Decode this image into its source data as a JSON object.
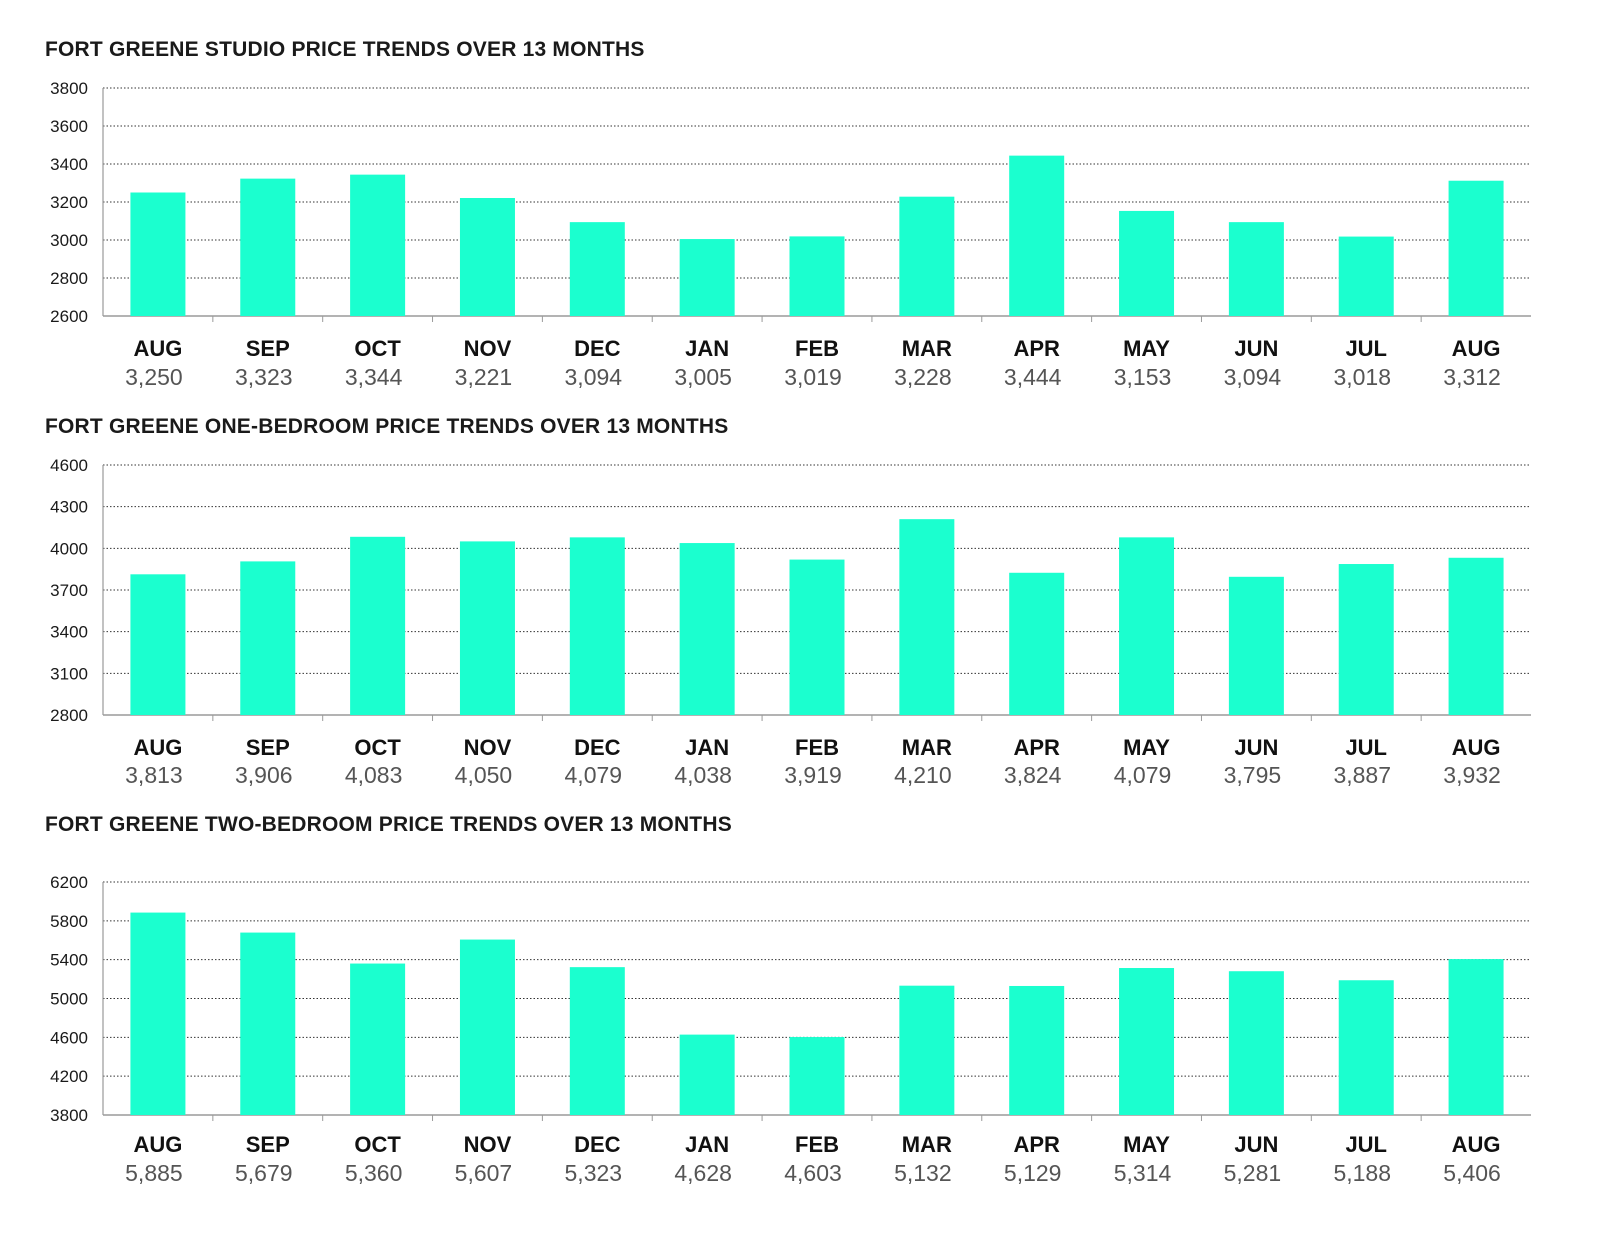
{
  "colors": {
    "bar": "#1BFFCF",
    "grid": "#333333",
    "axis": "#9a9a9a"
  },
  "chart_data": [
    {
      "type": "bar",
      "title": "FORT GREENE STUDIO PRICE TRENDS OVER 13 MONTHS",
      "categories": [
        "AUG",
        "SEP",
        "OCT",
        "NOV",
        "DEC",
        "JAN",
        "FEB",
        "MAR",
        "APR",
        "MAY",
        "JUN",
        "JUL",
        "AUG"
      ],
      "values": [
        3250,
        3323,
        3344,
        3221,
        3094,
        3005,
        3019,
        3228,
        3444,
        3153,
        3094,
        3018,
        3312
      ],
      "value_labels": [
        "3,250",
        "3,323",
        "3,344",
        "3,221",
        "3,094",
        "3,005",
        "3,019",
        "3,228",
        "3,444",
        "3,153",
        "3,094",
        "3,018",
        "3,312"
      ],
      "yticks": [
        2600,
        2800,
        3000,
        3200,
        3400,
        3600,
        3800
      ],
      "ylim": [
        2600,
        3800
      ],
      "grid": true
    },
    {
      "type": "bar",
      "title": "FORT GREENE ONE-BEDROOM PRICE TRENDS OVER 13 MONTHS",
      "categories": [
        "AUG",
        "SEP",
        "OCT",
        "NOV",
        "DEC",
        "JAN",
        "FEB",
        "MAR",
        "APR",
        "MAY",
        "JUN",
        "JUL",
        "AUG"
      ],
      "values": [
        3813,
        3906,
        4083,
        4050,
        4079,
        4038,
        3919,
        4210,
        3824,
        4079,
        3795,
        3887,
        3932
      ],
      "value_labels": [
        "3,813",
        "3,906",
        "4,083",
        "4,050",
        "4,079",
        "4,038",
        "3,919",
        "4,210",
        "3,824",
        "4,079",
        "3,795",
        "3,887",
        "3,932"
      ],
      "yticks": [
        2800,
        3100,
        3400,
        3700,
        4000,
        4300,
        4600
      ],
      "ylim": [
        2800,
        4600
      ],
      "grid": true
    },
    {
      "type": "bar",
      "title": "FORT GREENE TWO-BEDROOM PRICE TRENDS OVER 13 MONTHS",
      "categories": [
        "AUG",
        "SEP",
        "OCT",
        "NOV",
        "DEC",
        "JAN",
        "FEB",
        "MAR",
        "APR",
        "MAY",
        "JUN",
        "JUL",
        "AUG"
      ],
      "values": [
        5885,
        5679,
        5360,
        5607,
        5323,
        4628,
        4603,
        5132,
        5129,
        5314,
        5281,
        5188,
        5406
      ],
      "value_labels": [
        "5,885",
        "5,679",
        "5,360",
        "5,607",
        "5,323",
        "4,628",
        "4,603",
        "5,132",
        "5,129",
        "5,314",
        "5,281",
        "5,188",
        "5,406"
      ],
      "yticks": [
        3800,
        4200,
        4600,
        5000,
        5400,
        5800,
        6200
      ],
      "ylim": [
        3800,
        6200
      ],
      "grid": true
    }
  ]
}
